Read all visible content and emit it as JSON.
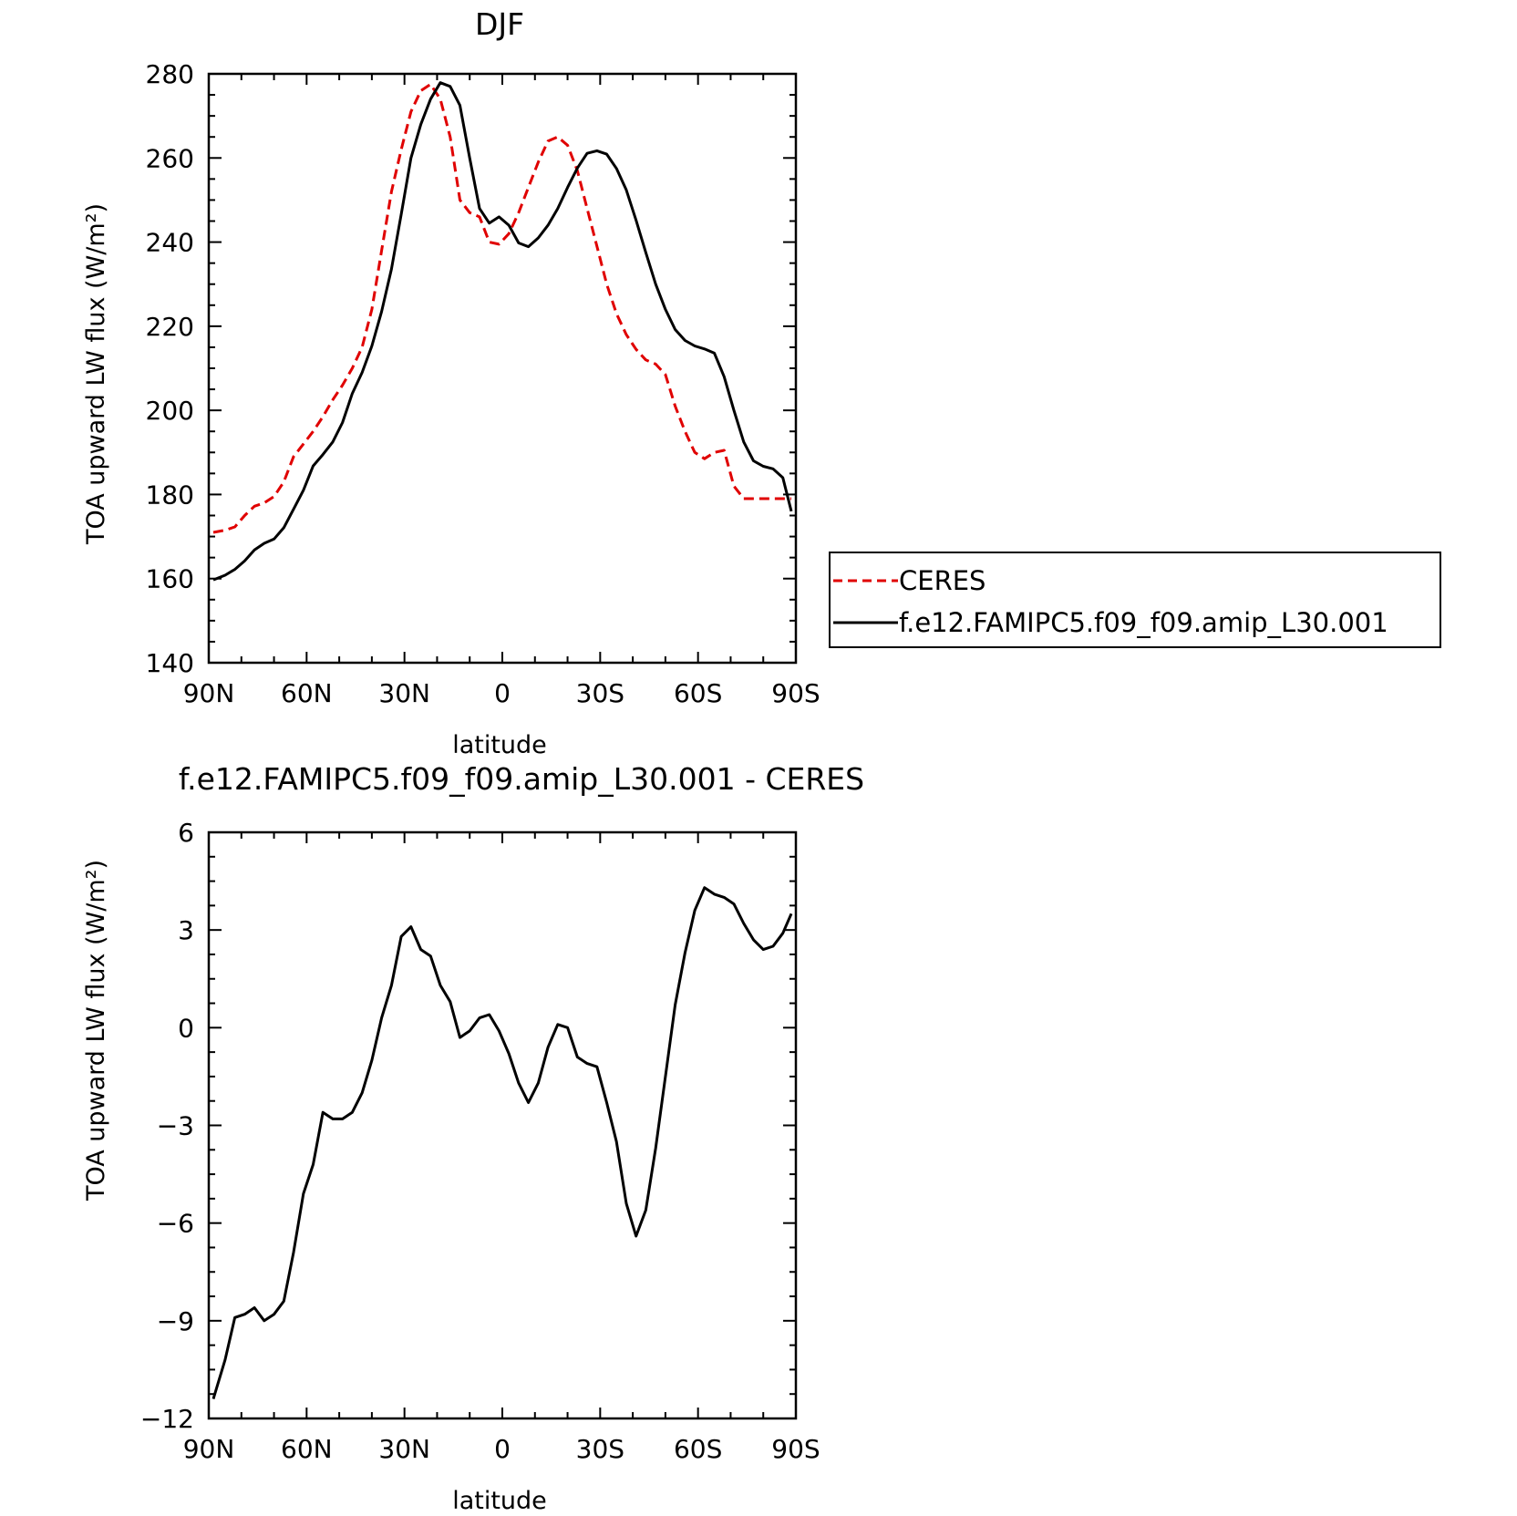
{
  "chart_data": [
    {
      "type": "line",
      "title": "DJF",
      "xlabel": "latitude",
      "ylabel": "TOA upward LW flux (W/m²)",
      "xlim": [
        -90,
        90
      ],
      "ylim": [
        140,
        280
      ],
      "x_ticks": [
        "90N",
        "60N",
        "30N",
        "0",
        "30S",
        "60S",
        "90S"
      ],
      "y_ticks": [
        "140",
        "160",
        "180",
        "200",
        "220",
        "240",
        "260",
        "280"
      ],
      "x_note": "positive = south",
      "legend_position": "right-middle",
      "series": [
        {
          "name": "CERES",
          "color": "#e00000",
          "style": "dashed",
          "x": [
            -88.6,
            -85,
            -82,
            -79,
            -76,
            -73,
            -70,
            -67,
            -64,
            -61,
            -58,
            -55,
            -52,
            -49,
            -46,
            -43,
            -40,
            -37,
            -34,
            -31,
            -28,
            -25,
            -22,
            -19,
            -16,
            -13,
            -10,
            -7,
            -4,
            -1,
            2,
            5,
            8,
            11,
            14,
            17,
            20,
            23,
            26,
            29,
            32,
            35,
            38,
            41,
            44,
            47,
            50,
            53,
            56,
            59,
            62,
            65,
            68,
            71,
            74,
            77,
            80,
            83,
            86,
            88.6
          ],
          "values": [
            171,
            171.5,
            172.3,
            175,
            177.2,
            178,
            179.5,
            183,
            189,
            192,
            195,
            198.5,
            202.5,
            206,
            210,
            215,
            224,
            238,
            252,
            262,
            271,
            276,
            277.5,
            274,
            265,
            250,
            247,
            246,
            240,
            239.5,
            242,
            247,
            253,
            259,
            264,
            265,
            263,
            257,
            248,
            239,
            230,
            223,
            218,
            214.5,
            212,
            211,
            208.5,
            201,
            195,
            190,
            188.5,
            190,
            190.5,
            182,
            179,
            179,
            179,
            179,
            179,
            179
          ]
        },
        {
          "name": "f.e12.FAMIPC5.f09_f09.amip_L30.001",
          "color": "#000000",
          "style": "solid",
          "x": [
            -88.6,
            -85,
            -82,
            -79,
            -76,
            -73,
            -70,
            -67,
            -64,
            -61,
            -58,
            -55,
            -52,
            -49,
            -46,
            -43,
            -40,
            -37,
            -34,
            -31,
            -28,
            -25,
            -22,
            -19,
            -16,
            -13,
            -10,
            -7,
            -4,
            -1,
            2,
            5,
            8,
            11,
            14,
            17,
            20,
            23,
            26,
            29,
            32,
            35,
            38,
            41,
            44,
            47,
            50,
            53,
            56,
            59,
            62,
            65,
            68,
            71,
            74,
            77,
            80,
            83,
            86,
            88.6
          ],
          "values": [
            159.7,
            160.8,
            162.2,
            164.2,
            166.8,
            168.4,
            169.4,
            172.1,
            176.5,
            181,
            186.8,
            189.5,
            192.5,
            197.1,
            204,
            209,
            215.3,
            223.5,
            233.6,
            246.6,
            260,
            268,
            274,
            277.9,
            277,
            272.5,
            260,
            248,
            244.5,
            246,
            244,
            239.8,
            238.9,
            241,
            244,
            248,
            253,
            257.6,
            261.1,
            261.7,
            260.9,
            257.5,
            252.4,
            245.2,
            237.5,
            230,
            224,
            219.2,
            216.6,
            215.3,
            214.6,
            213.6,
            208,
            200,
            192.5,
            188,
            186.7,
            186.1,
            184,
            176
          ]
        }
      ]
    },
    {
      "type": "line",
      "title": "f.e12.FAMIPC5.f09_f09.amip_L30.001 - CERES",
      "xlabel": "latitude",
      "ylabel": "TOA upward LW flux (W/m²)",
      "xlim": [
        -90,
        90
      ],
      "ylim": [
        -12,
        6
      ],
      "x_ticks": [
        "90N",
        "60N",
        "30N",
        "0",
        "30S",
        "60S",
        "90S"
      ],
      "y_ticks": [
        "6",
        "3",
        "0",
        "−3",
        "−6",
        "−9",
        "−12"
      ],
      "series": [
        {
          "color": "#000000",
          "style": "solid",
          "x": [
            -88.6,
            -85,
            -82,
            -79,
            -76,
            -73,
            -70,
            -67,
            -64,
            -61,
            -58,
            -55,
            -52,
            -49,
            -46,
            -43,
            -40,
            -37,
            -34,
            -31,
            -28,
            -25,
            -22,
            -19,
            -16,
            -13,
            -10,
            -7,
            -4,
            -1,
            2,
            5,
            8,
            11,
            14,
            17,
            20,
            23,
            26,
            29,
            32,
            35,
            38,
            41,
            44,
            47,
            50,
            53,
            56,
            59,
            62,
            65,
            68,
            71,
            74,
            77,
            80,
            83,
            86,
            88.6
          ],
          "values": [
            -11.4,
            -10.2,
            -8.9,
            -8.8,
            -8.6,
            -9.0,
            -8.8,
            -8.4,
            -6.9,
            -5.1,
            -4.2,
            -2.6,
            -2.8,
            -2.8,
            -2.6,
            -2.0,
            -1.0,
            0.3,
            1.3,
            2.8,
            3.1,
            2.4,
            2.2,
            1.3,
            0.8,
            -0.3,
            -0.1,
            0.3,
            0.4,
            -0.1,
            -0.8,
            -1.7,
            -2.3,
            -1.7,
            -0.6,
            0.1,
            0.0,
            -0.9,
            -1.1,
            -1.2,
            -2.3,
            -3.5,
            -5.4,
            -6.4,
            -5.6,
            -3.7,
            -1.5,
            0.7,
            2.3,
            3.6,
            4.3,
            4.1,
            4.0,
            3.8,
            3.2,
            2.7,
            2.4,
            2.5,
            2.9,
            3.5
          ]
        }
      ]
    }
  ]
}
